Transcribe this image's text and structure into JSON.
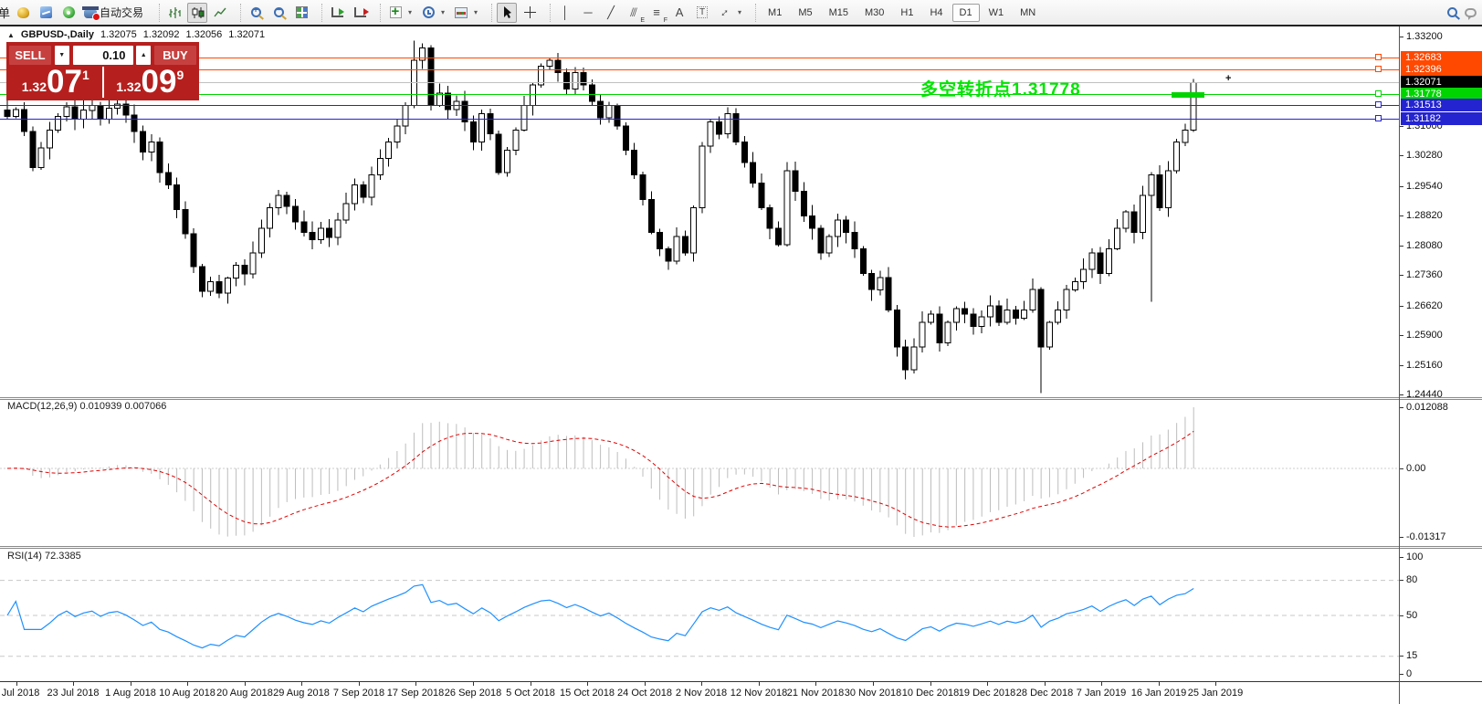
{
  "toolbar": {
    "order_partial": "单",
    "autotrade_label": "自动交易",
    "timeframes": [
      "M1",
      "M5",
      "M15",
      "M30",
      "H1",
      "H4",
      "D1",
      "W1",
      "MN"
    ],
    "active_timeframe": "D1"
  },
  "chart_title": {
    "symbol": "GBPUSD-,Daily",
    "open": "1.32075",
    "high": "1.32092",
    "low": "1.32056",
    "close": "1.32071"
  },
  "trade_panel": {
    "sell_label": "SELL",
    "buy_label": "BUY",
    "lot": "0.10",
    "sell_small": "1.32",
    "sell_big": "07",
    "sell_sup": "1",
    "buy_small": "1.32",
    "buy_big": "09",
    "buy_sup": "9"
  },
  "annotation": {
    "text": "多空转折点1.31778",
    "price": 1.31778,
    "color": "#00e400"
  },
  "price_axis": {
    "ticks": [
      "1.33200",
      "1.31000",
      "1.30280",
      "1.29540",
      "1.28820",
      "1.28080",
      "1.27360",
      "1.26620",
      "1.25900",
      "1.25160",
      "1.24440"
    ]
  },
  "macd": {
    "label": "MACD(12,26,9)",
    "value_main": "0.010939",
    "value_signal": "0.007066",
    "axis": [
      "0.012088",
      "0.00",
      "-0.01317"
    ]
  },
  "rsi": {
    "label": "RSI(14)",
    "value": "72.3385",
    "axis": [
      "100",
      "80",
      "50",
      "15",
      "0"
    ],
    "levels": [
      80,
      50,
      15
    ]
  },
  "dates": [
    "3 Jul 2018",
    "23 Jul 2018",
    "1 Aug 2018",
    "10 Aug 2018",
    "20 Aug 2018",
    "29 Aug 2018",
    "7 Sep 2018",
    "17 Sep 2018",
    "26 Sep 2018",
    "5 Oct 2018",
    "15 Oct 2018",
    "24 Oct 2018",
    "2 Nov 2018",
    "12 Nov 2018",
    "21 Nov 2018",
    "30 Nov 2018",
    "10 Dec 2018",
    "19 Dec 2018",
    "28 Dec 2018",
    "7 Jan 2019",
    "16 Jan 2019",
    "25 Jan 2019"
  ],
  "chart_data": {
    "type": "candlestick",
    "symbol": "GBPUSD-",
    "timeframe": "Daily",
    "current_price": 1.32071,
    "price_range_visible": [
      1.2444,
      1.332
    ],
    "open_first": 1.314,
    "closes": [
      1.3125,
      1.3142,
      1.3088,
      1.3,
      1.3048,
      1.3092,
      1.3125,
      1.3148,
      1.3118,
      1.314,
      1.3152,
      1.3118,
      1.3145,
      1.3155,
      1.3128,
      1.3088,
      1.3038,
      1.3062,
      1.2988,
      1.2958,
      1.2898,
      1.2838,
      1.2758,
      1.2698,
      1.2722,
      1.2694,
      1.273,
      1.2762,
      1.274,
      1.2792,
      1.2852,
      1.2902,
      1.2932,
      1.2905,
      1.2868,
      1.2842,
      1.2824,
      1.2852,
      1.283,
      1.2872,
      1.2912,
      1.2958,
      1.2928,
      1.2982,
      1.3022,
      1.3062,
      1.3102,
      1.3152,
      1.3262,
      1.3292,
      1.3152,
      1.3182,
      1.3142,
      1.3162,
      1.3112,
      1.3062,
      1.3132,
      1.3082,
      1.2988,
      1.3042,
      1.3092,
      1.3152,
      1.3202,
      1.3248,
      1.3262,
      1.3232,
      1.3192,
      1.3232,
      1.3202,
      1.3162,
      1.3122,
      1.3152,
      1.3102,
      1.3042,
      1.2982,
      1.2922,
      1.2842,
      1.2802,
      1.2772,
      1.2832,
      1.2792,
      1.2902,
      1.3052,
      1.3112,
      1.3082,
      1.3132,
      1.3062,
      1.3012,
      1.2962,
      1.2902,
      1.2852,
      1.2812,
      1.2992,
      1.2942,
      1.2882,
      1.2852,
      1.2792,
      1.2832,
      1.2872,
      1.2842,
      1.2802,
      1.2742,
      1.2702,
      1.2732,
      1.2652,
      1.2562,
      1.2506,
      1.2562,
      1.2622,
      1.2642,
      1.2572,
      1.2622,
      1.2656,
      1.2642,
      1.2612,
      1.2636,
      1.2662,
      1.2622,
      1.2652,
      1.2632,
      1.2652,
      1.2702,
      1.2562,
      1.2622,
      1.2652,
      1.2702,
      1.2722,
      1.2752,
      1.2792,
      1.2742,
      1.2802,
      1.2852,
      1.2892,
      1.2842,
      1.2932,
      1.2982,
      1.2902,
      1.2992,
      1.3062,
      1.3092,
      1.3207
    ],
    "wick_overrides": {
      "48": {
        "h": 1.331
      },
      "122": {
        "l": 1.245
      },
      "135": {
        "l": 1.2672
      },
      "140": {
        "h": 1.3216
      }
    },
    "levels": [
      {
        "price": 1.32683,
        "color": "#ff4800",
        "label": "1.32683",
        "handle": true
      },
      {
        "price": 1.32396,
        "color": "#ff4800",
        "label": "1.32396",
        "handle": true
      },
      {
        "price": 1.32071,
        "color": "#c0c0c0",
        "label": "1.32071",
        "label_bg": "#000000",
        "handle": false
      },
      {
        "price": 1.31778,
        "color": "#00d400",
        "label": "1.31778",
        "handle": true
      },
      {
        "price": 1.31513,
        "color": "#2424d0",
        "label": "1.31513",
        "handle": true
      },
      {
        "price": 1.31182,
        "color": "#2424d0",
        "label": "1.31182",
        "handle": true
      }
    ]
  }
}
